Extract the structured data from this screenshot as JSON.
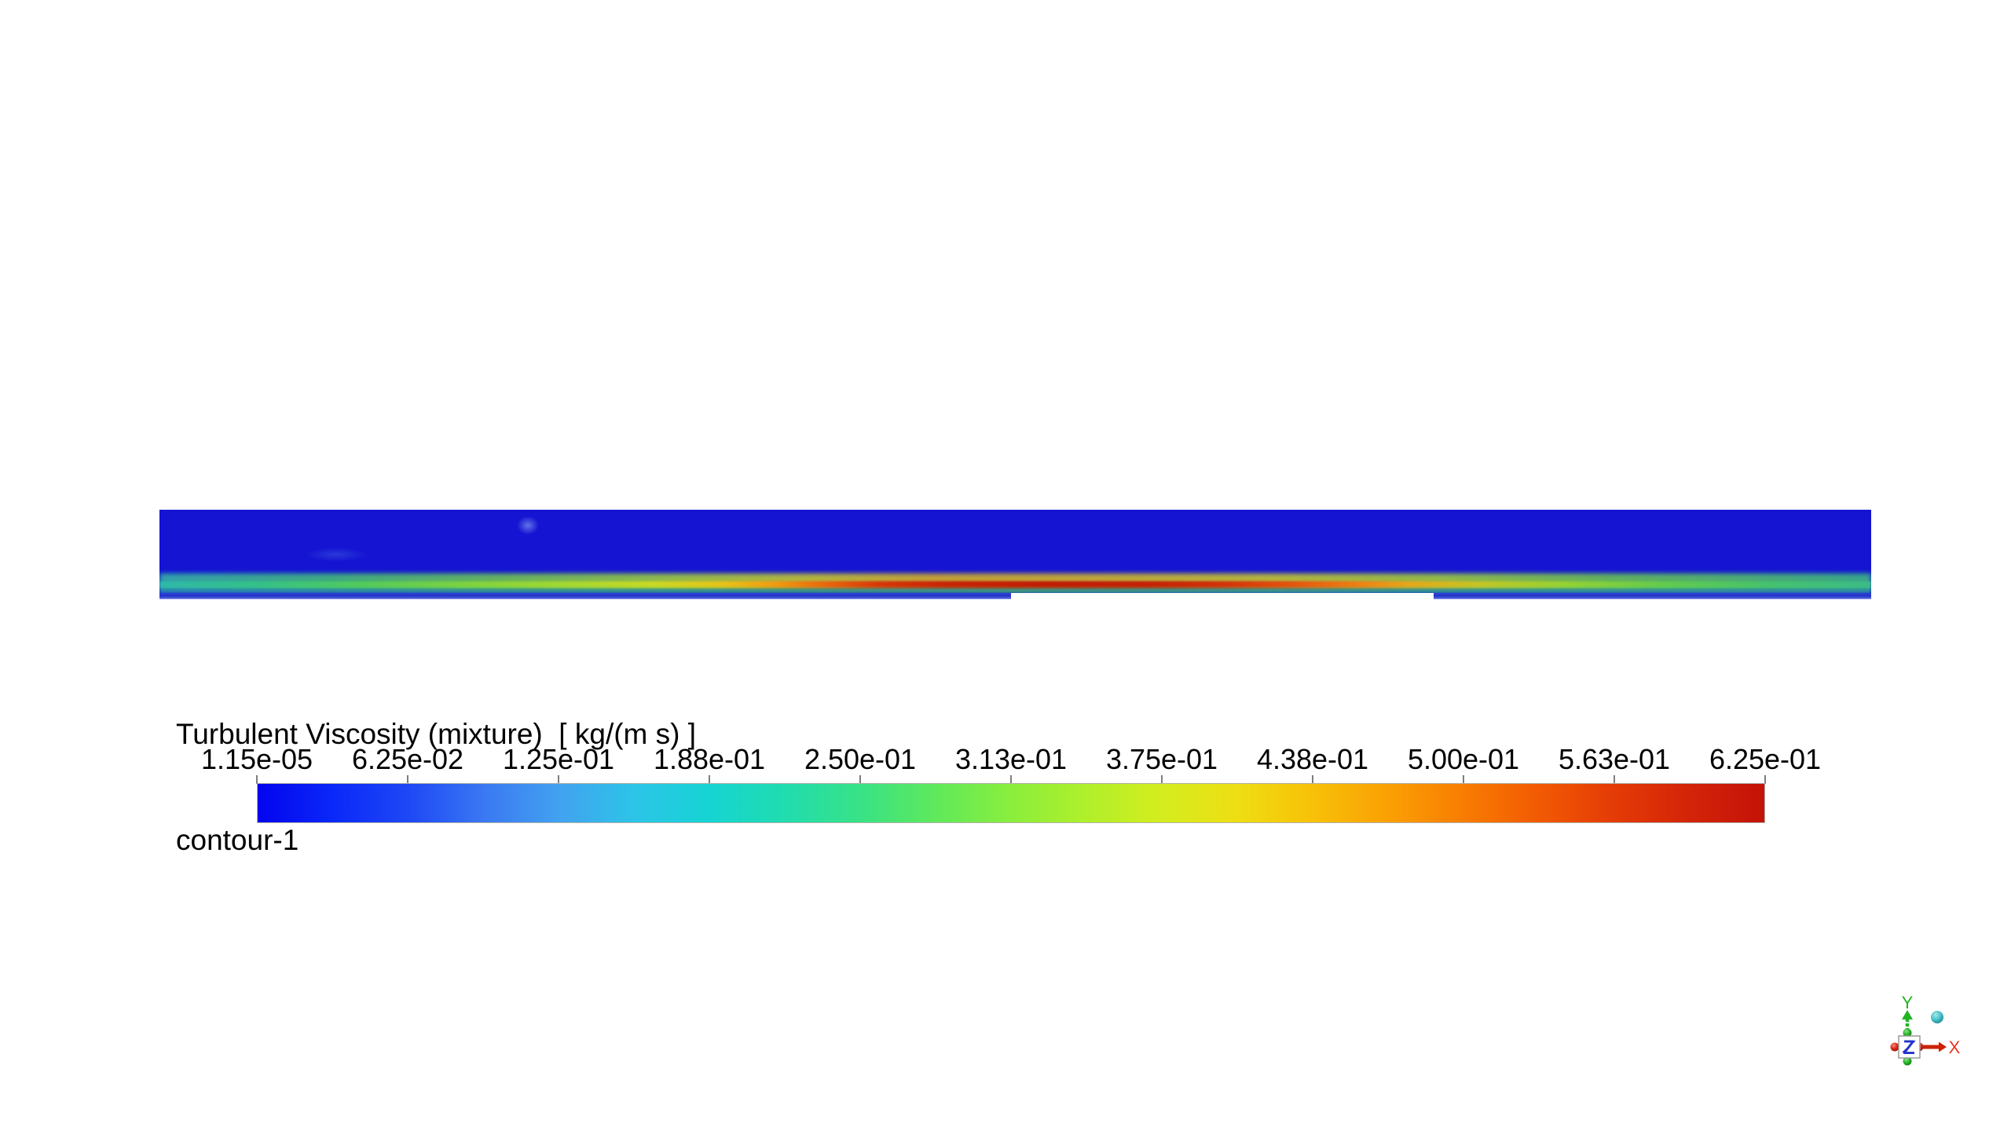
{
  "legend": {
    "title": "Turbulent Viscosity (mixture)  [ kg/(m s) ]",
    "subtitle": "contour-1",
    "labels": [
      "1.15e-05",
      "6.25e-02",
      "1.25e-01",
      "1.88e-01",
      "2.50e-01",
      "3.13e-01",
      "3.75e-01",
      "4.38e-01",
      "5.00e-01",
      "5.63e-01",
      "6.25e-01"
    ]
  },
  "triad": {
    "x_label": "X",
    "y_label": "Y",
    "z_label": "Z",
    "x_color": "#dd2211",
    "y_color": "#22b422",
    "z_color": "#2233cc",
    "extra_sphere_color": "#45c0c8"
  },
  "chart_data": {
    "type": "heatmap",
    "title": "Turbulent Viscosity (mixture)  [ kg/(m s) ]",
    "subtitle": "contour-1",
    "variable": "Turbulent Viscosity (mixture)",
    "units": "kg/(m s)",
    "colormap": "rainbow-blue-to-red",
    "legend_position": "bottom",
    "value_range": [
      1.15e-05,
      0.625
    ],
    "colorbar_tick_labels": [
      "1.15e-05",
      "6.25e-02",
      "1.25e-01",
      "1.88e-01",
      "2.50e-01",
      "3.13e-01",
      "3.75e-01",
      "4.38e-01",
      "5.00e-01",
      "5.63e-01",
      "6.25e-01"
    ],
    "colorbar_tick_values": [
      1.15e-05,
      0.0625,
      0.125,
      0.188,
      0.25,
      0.313,
      0.375,
      0.438,
      0.5,
      0.563,
      0.625
    ],
    "field_description": "Thin horizontal channel domain; bulk of the field at minimum turbulent viscosity (~1e-5, deep blue); a turbulent boundary-layer streak along the bottom wall peaks near 0.55-0.63 kg/(m s) (dark red) over x-fraction 0.40-0.66 of the domain, decaying to ~0.2-0.3 (teal/green) toward both ends; bottom wall is segmented with a shallower step between x-fractions 0.50 and 0.745",
    "field_base_color": "#1414d2",
    "colorbar_stops": [
      [
        0.0,
        "#0404ee"
      ],
      [
        0.05,
        "#0a28f8"
      ],
      [
        0.1,
        "#1e48f5"
      ],
      [
        0.15,
        "#3a78f2"
      ],
      [
        0.2,
        "#42a2f0"
      ],
      [
        0.25,
        "#2cc4e8"
      ],
      [
        0.3,
        "#16d4d3"
      ],
      [
        0.35,
        "#20dcae"
      ],
      [
        0.4,
        "#38e286"
      ],
      [
        0.45,
        "#5fe95c"
      ],
      [
        0.5,
        "#8aee3c"
      ],
      [
        0.55,
        "#b0ef2b"
      ],
      [
        0.6,
        "#d4ed1e"
      ],
      [
        0.65,
        "#eede13"
      ],
      [
        0.7,
        "#f8c108"
      ],
      [
        0.75,
        "#faa004"
      ],
      [
        0.8,
        "#f87d02"
      ],
      [
        0.85,
        "#f25a03"
      ],
      [
        0.9,
        "#e43b06"
      ],
      [
        0.95,
        "#d42408"
      ],
      [
        1.0,
        "#c41208"
      ]
    ],
    "strip_core_stops": [
      [
        0.0,
        "#2fb9a8"
      ],
      [
        0.06,
        "#35c285"
      ],
      [
        0.12,
        "#54cb59"
      ],
      [
        0.18,
        "#7fd33e"
      ],
      [
        0.24,
        "#a8d82e"
      ],
      [
        0.29,
        "#ccd922"
      ],
      [
        0.33,
        "#e9c216"
      ],
      [
        0.36,
        "#f29a0e"
      ],
      [
        0.39,
        "#ea650b"
      ],
      [
        0.42,
        "#d83607"
      ],
      [
        0.46,
        "#c92204"
      ],
      [
        0.52,
        "#c01c03"
      ],
      [
        0.58,
        "#c62105"
      ],
      [
        0.62,
        "#d33108"
      ],
      [
        0.66,
        "#e5520c"
      ],
      [
        0.7,
        "#f07f12"
      ],
      [
        0.73,
        "#e7a81a"
      ],
      [
        0.77,
        "#c6c524"
      ],
      [
        0.82,
        "#97d232"
      ],
      [
        0.88,
        "#62cb4d"
      ],
      [
        0.94,
        "#47c26c"
      ],
      [
        1.0,
        "#3cbc86"
      ]
    ],
    "strip_fuzz_stops": [
      [
        0.0,
        "#37b9a4"
      ],
      [
        0.1,
        "#46c474"
      ],
      [
        0.2,
        "#74cf4a"
      ],
      [
        0.3,
        "#a8d832"
      ],
      [
        0.38,
        "#cfd024"
      ],
      [
        0.45,
        "#e0b81c"
      ],
      [
        0.55,
        "#ddc01e"
      ],
      [
        0.65,
        "#cfd024"
      ],
      [
        0.75,
        "#a6d632"
      ],
      [
        0.85,
        "#6ecd4a"
      ],
      [
        1.0,
        "#3fbf7e"
      ]
    ],
    "strip_under_stops": [
      [
        0.0,
        "#2fb0a8"
      ],
      [
        0.2,
        "#3cc07c"
      ],
      [
        0.5,
        "#49c565"
      ],
      [
        0.75,
        "#3fc17a"
      ],
      [
        1.0,
        "#38bc8c"
      ]
    ]
  }
}
